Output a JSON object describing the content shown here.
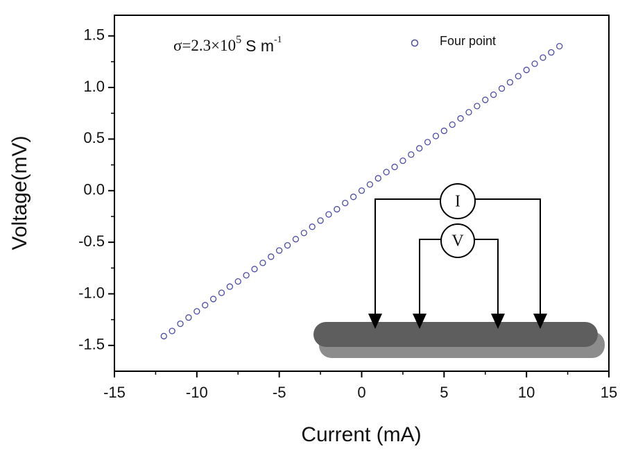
{
  "chart_data": {
    "type": "scatter",
    "annotation": {
      "base": "σ=2.3×10",
      "exp": "5",
      "unit": "S m",
      "unit_exp": "-1"
    },
    "xlabel": "Current (mA)",
    "ylabel": "Voltage(mV)",
    "series": [
      {
        "name": "Four point",
        "color": "#4b4ba8",
        "x": [
          -12,
          -11.5,
          -11,
          -10.5,
          -10,
          -9.5,
          -9,
          -8.5,
          -8,
          -7.5,
          -7,
          -6.5,
          -6,
          -5.5,
          -5,
          -4.5,
          -4,
          -3.5,
          -3,
          -2.5,
          -2,
          -1.5,
          -1,
          -0.5,
          0,
          0.5,
          1,
          1.5,
          2,
          2.5,
          3,
          3.5,
          4,
          4.5,
          5,
          5.5,
          6,
          6.5,
          7,
          7.5,
          8,
          8.5,
          9,
          9.5,
          10,
          10.5,
          11,
          11.5,
          12
        ],
        "values": [
          -1.41,
          -1.36,
          -1.29,
          -1.23,
          -1.17,
          -1.11,
          -1.05,
          -0.99,
          -0.93,
          -0.88,
          -0.82,
          -0.76,
          -0.7,
          -0.64,
          -0.58,
          -0.53,
          -0.47,
          -0.41,
          -0.35,
          -0.29,
          -0.23,
          -0.18,
          -0.12,
          -0.06,
          0,
          0.06,
          0.12,
          0.18,
          0.23,
          0.29,
          0.35,
          0.41,
          0.47,
          0.53,
          0.58,
          0.64,
          0.7,
          0.76,
          0.82,
          0.88,
          0.93,
          0.99,
          1.05,
          1.11,
          1.17,
          1.23,
          1.29,
          1.34,
          1.4
        ]
      }
    ],
    "xlim": [
      -15,
      15
    ],
    "ylim": [
      -1.75,
      1.7
    ],
    "xticks": [
      -15,
      -10,
      -5,
      0,
      5,
      10,
      15
    ],
    "yticks": [
      -1.5,
      {
        "value": -1,
        "label": "-1.0"
      },
      -0.5,
      {
        "value": 0,
        "label": "0.0"
      },
      0.5,
      {
        "value": 1,
        "label": "1.0"
      },
      1.5
    ],
    "xminorticks": [
      -12.5,
      -7.5,
      -2.5,
      2.5,
      7.5,
      12.5
    ],
    "yminorticks": [
      -1.25,
      -0.75,
      -0.25,
      0.25,
      0.75,
      1.25
    ],
    "legend": "upper right",
    "inset": {
      "labels": [
        "I",
        "V"
      ]
    }
  }
}
